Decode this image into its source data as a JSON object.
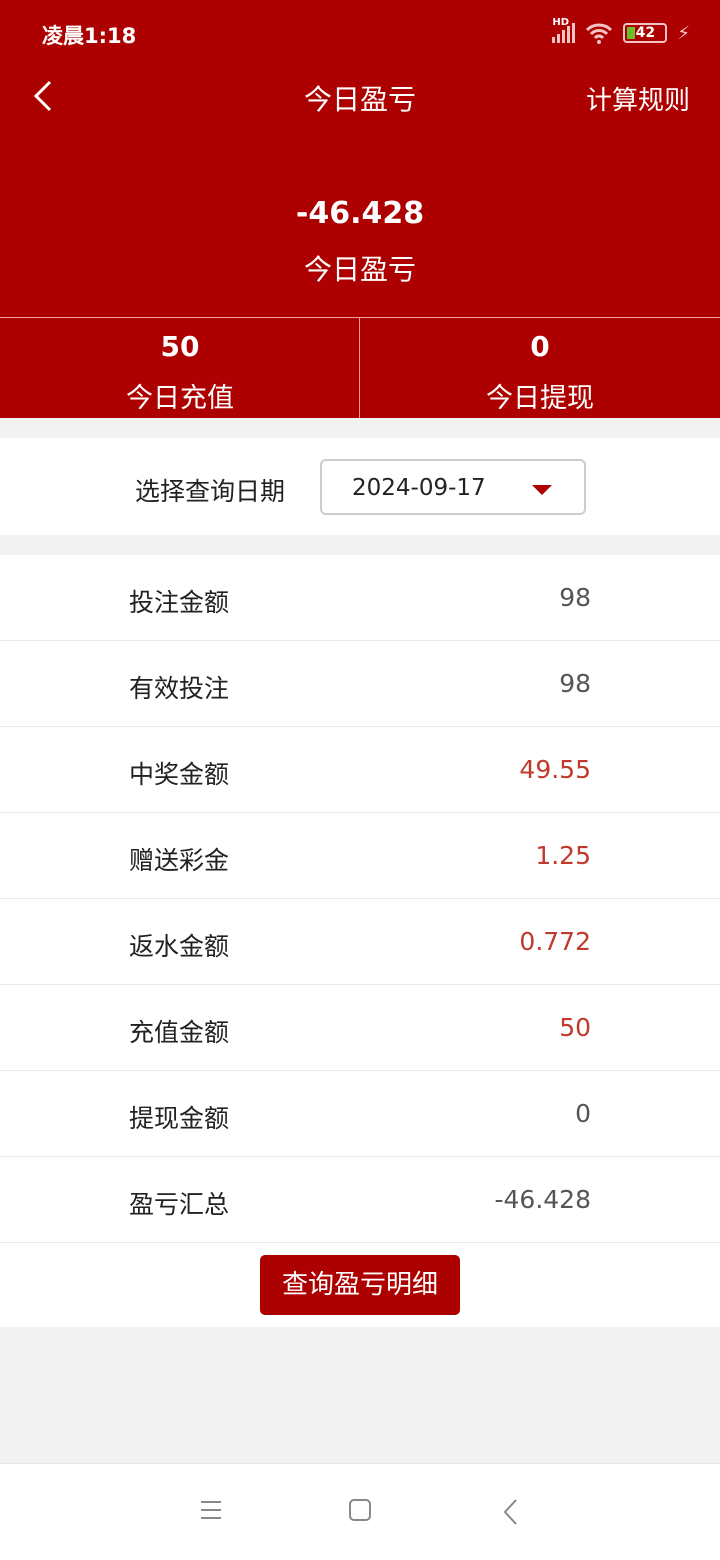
{
  "status_bar": {
    "time": "凌晨1:18",
    "network": "HD",
    "battery": "42"
  },
  "header": {
    "title": "今日盈亏",
    "rule_link": "计算规则"
  },
  "summary": {
    "value": "-46.428",
    "label": "今日盈亏"
  },
  "stats": [
    {
      "value": "50",
      "label": "今日充值"
    },
    {
      "value": "0",
      "label": "今日提现"
    }
  ],
  "date_filter": {
    "label": "选择查询日期",
    "value": "2024-09-17"
  },
  "rows": [
    {
      "label": "投注金额",
      "value": "98",
      "highlight": false
    },
    {
      "label": "有效投注",
      "value": "98",
      "highlight": false
    },
    {
      "label": "中奖金额",
      "value": "49.55",
      "highlight": true
    },
    {
      "label": "赠送彩金",
      "value": "1.25",
      "highlight": true
    },
    {
      "label": "返水金额",
      "value": "0.772",
      "highlight": true
    },
    {
      "label": "充值金额",
      "value": "50",
      "highlight": true
    },
    {
      "label": "提现金额",
      "value": "0",
      "highlight": false
    },
    {
      "label": "盈亏汇总",
      "value": "-46.428",
      "highlight": false
    }
  ],
  "detail_button": "查询盈亏明细",
  "colors": {
    "brand": "#ad0000",
    "highlight": "#c0392b"
  }
}
